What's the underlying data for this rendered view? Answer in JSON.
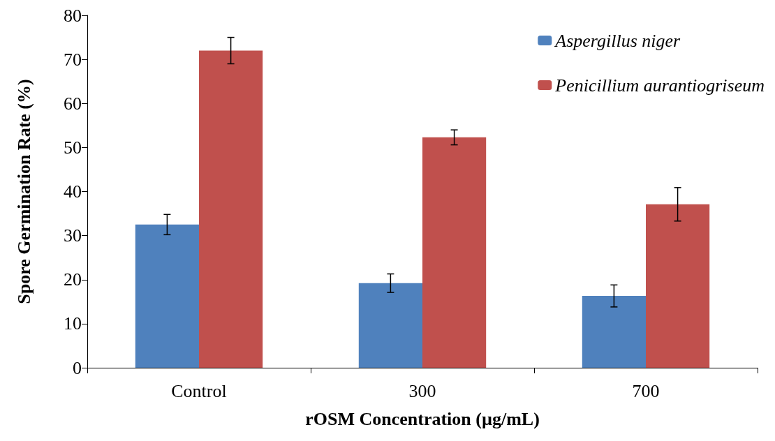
{
  "chart_data": {
    "type": "bar",
    "xlabel": "rOSM Concentration (µg/mL)",
    "ylabel": "Spore Germination Rate (%)",
    "categories": [
      "Control",
      "300",
      "700"
    ],
    "series": [
      {
        "name": "Aspergillus niger",
        "color": "#4f81bd",
        "values": [
          32.5,
          19.2,
          16.3
        ],
        "errors": [
          2.3,
          2.1,
          2.5
        ]
      },
      {
        "name": "Penicillium aurantiogriseum",
        "color": "#c0504d",
        "values": [
          72,
          52.3,
          37.1
        ],
        "errors": [
          3,
          1.7,
          3.8
        ]
      }
    ],
    "ylim": [
      0,
      80
    ],
    "yticks": [
      0,
      10,
      20,
      30,
      40,
      50,
      60,
      70,
      80
    ],
    "grid": false,
    "legend": "top right"
  }
}
